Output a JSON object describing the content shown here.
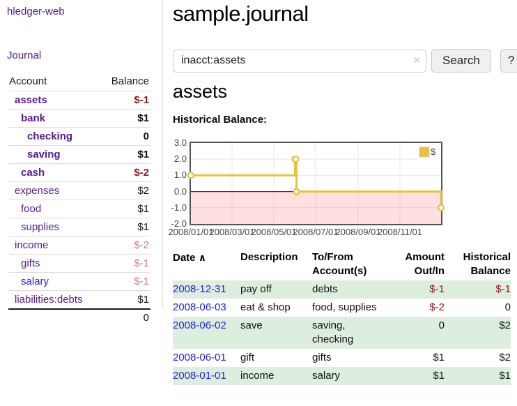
{
  "colors": {
    "link_purple": "#551a8b",
    "link_blue": "#2323dd",
    "negative_strong": "#8b1c1c",
    "negative_soft": "#c57e7e",
    "row_stripe_green": "#deeede",
    "chart_line_gold": "#e8c23e",
    "chart_negative_fill_pink": "#f9d9d9",
    "chart_zero_line_red": "#871919"
  },
  "sidebar": {
    "brand": "hledger-web",
    "journal_label": "Journal",
    "accounts_table": {
      "headers": [
        "Account",
        "Balance"
      ],
      "rows": [
        {
          "name": "assets",
          "depth": 1,
          "bold": true,
          "link": "purple",
          "balance": "$-1",
          "tone": "neg-strong"
        },
        {
          "name": "bank",
          "depth": 2,
          "bold": true,
          "link": "purple",
          "balance": "$1",
          "tone": "plain"
        },
        {
          "name": "checking",
          "depth": 3,
          "bold": true,
          "link": "purple",
          "balance": "0",
          "tone": "plain"
        },
        {
          "name": "saving",
          "depth": 3,
          "bold": true,
          "link": "purple",
          "balance": "$1",
          "tone": "plain"
        },
        {
          "name": "cash",
          "depth": 2,
          "bold": true,
          "link": "purple",
          "balance": "$-2",
          "tone": "neg-strong"
        },
        {
          "name": "expenses",
          "depth": 1,
          "bold": false,
          "link": "purple",
          "balance": "$2",
          "tone": "plain"
        },
        {
          "name": "food",
          "depth": 2,
          "bold": false,
          "link": "purple",
          "balance": "$1",
          "tone": "plain"
        },
        {
          "name": "supplies",
          "depth": 2,
          "bold": false,
          "link": "purple",
          "balance": "$1",
          "tone": "plain"
        },
        {
          "name": "income",
          "depth": 1,
          "bold": false,
          "link": "purple",
          "balance": "$-2",
          "tone": "neg-soft"
        },
        {
          "name": "gifts",
          "depth": 2,
          "bold": false,
          "link": "purple",
          "balance": "$-1",
          "tone": "neg-soft"
        },
        {
          "name": "salary",
          "depth": 2,
          "bold": false,
          "link": "blue",
          "balance": "$-1",
          "tone": "neg-soft"
        },
        {
          "name": "liabilities:debts",
          "depth": 1,
          "bold": false,
          "link": "purple",
          "balance": "$1",
          "tone": "plain"
        }
      ],
      "total": "0"
    }
  },
  "main": {
    "title": "sample.journal",
    "search": {
      "value": "inacct:assets",
      "clear_icon": "×",
      "button_label": "Search",
      "help_label": "?"
    },
    "account_heading": "assets"
  },
  "chart_data": {
    "type": "line",
    "step": true,
    "title": "Historical Balance:",
    "series": [
      {
        "name": "$",
        "color": "#e8c23e",
        "points": [
          {
            "date": "2008-01-01",
            "value": 1
          },
          {
            "date": "2008-06-01",
            "value": 2
          },
          {
            "date": "2008-06-02",
            "value": 2
          },
          {
            "date": "2008-06-03",
            "value": 0
          },
          {
            "date": "2008-12-31",
            "value": -1
          }
        ]
      }
    ],
    "x_ticks": [
      "2008/01/01",
      "2008/03/01",
      "2008/05/01",
      "2008/07/01",
      "2008/09/01",
      "2008/11/01"
    ],
    "y_ticks": [
      3.0,
      2.0,
      1.0,
      0.0,
      -1.0,
      -2.0
    ],
    "ylim": [
      -2,
      3
    ],
    "x_range": [
      "2008-01-01",
      "2008-12-31"
    ],
    "grid": true,
    "legend_position": "top-right",
    "negative_region_shaded": true
  },
  "register_table": {
    "headers": {
      "date": "Date",
      "sort_icon": "∧",
      "description": "Description",
      "accounts": "To/From Account(s)",
      "amount": "Amount Out/In",
      "balance": "Historical Balance"
    },
    "rows": [
      {
        "date": "2008-12-31",
        "description": "pay off",
        "accounts": "debts",
        "amount": "$-1",
        "amount_neg": true,
        "balance": "$-1",
        "balance_neg": true
      },
      {
        "date": "2008-06-03",
        "description": "eat & shop",
        "accounts": "food, supplies",
        "amount": "$-2",
        "amount_neg": true,
        "balance": "0",
        "balance_neg": false
      },
      {
        "date": "2008-06-02",
        "description": "save",
        "accounts": "saving, checking",
        "amount": "0",
        "amount_neg": false,
        "balance": "$2",
        "balance_neg": false
      },
      {
        "date": "2008-06-01",
        "description": "gift",
        "accounts": "gifts",
        "amount": "$1",
        "amount_neg": false,
        "balance": "$2",
        "balance_neg": false
      },
      {
        "date": "2008-01-01",
        "description": "income",
        "accounts": "salary",
        "amount": "$1",
        "amount_neg": false,
        "balance": "$1",
        "balance_neg": false
      }
    ]
  }
}
